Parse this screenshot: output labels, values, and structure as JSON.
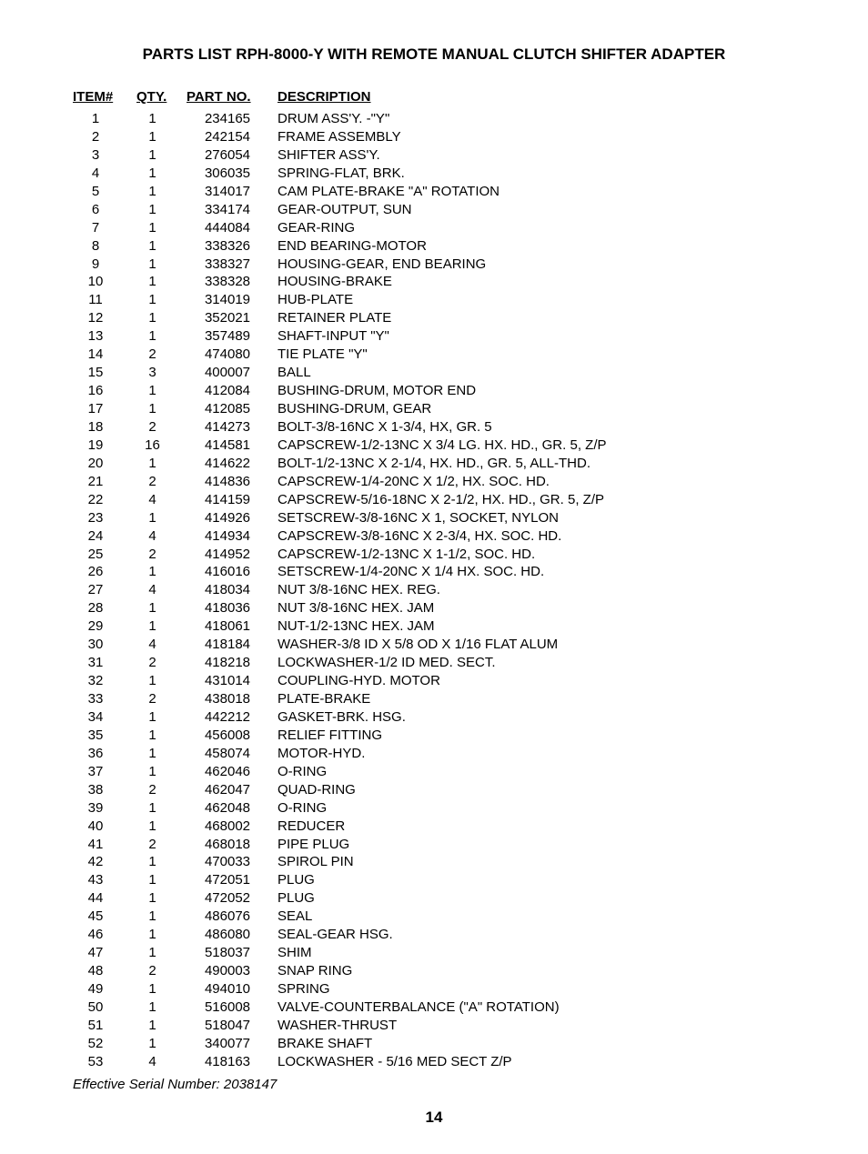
{
  "title": "PARTS LIST RPH-8000-Y WITH REMOTE MANUAL CLUTCH SHIFTER ADAPTER",
  "headers": {
    "item": "ITEM#",
    "qty": "QTY.",
    "part": "PART NO.",
    "desc": "DESCRIPTION"
  },
  "footer_note": "Effective Serial Number: 2038147",
  "page_number": "14",
  "rows": [
    {
      "item": "1",
      "qty": "1",
      "part": "234165",
      "desc": "DRUM ASS'Y. -\"Y\""
    },
    {
      "item": "2",
      "qty": "1",
      "part": "242154",
      "desc": "FRAME ASSEMBLY"
    },
    {
      "item": "3",
      "qty": "1",
      "part": "276054",
      "desc": "SHIFTER ASS'Y."
    },
    {
      "item": "4",
      "qty": "1",
      "part": "306035",
      "desc": "SPRING-FLAT, BRK."
    },
    {
      "item": "5",
      "qty": "1",
      "part": "314017",
      "desc": "CAM PLATE-BRAKE \"A\" ROTATION"
    },
    {
      "item": "6",
      "qty": "1",
      "part": "334174",
      "desc": "GEAR-OUTPUT, SUN"
    },
    {
      "item": "7",
      "qty": "1",
      "part": "444084",
      "desc": "GEAR-RING"
    },
    {
      "item": "8",
      "qty": "1",
      "part": "338326",
      "desc": "END BEARING-MOTOR"
    },
    {
      "item": "9",
      "qty": "1",
      "part": "338327",
      "desc": "HOUSING-GEAR, END BEARING"
    },
    {
      "item": "10",
      "qty": "1",
      "part": "338328",
      "desc": "HOUSING-BRAKE"
    },
    {
      "item": "11",
      "qty": "1",
      "part": "314019",
      "desc": "HUB-PLATE"
    },
    {
      "item": "12",
      "qty": "1",
      "part": "352021",
      "desc": "RETAINER PLATE"
    },
    {
      "item": "13",
      "qty": "1",
      "part": "357489",
      "desc": "SHAFT-INPUT \"Y\""
    },
    {
      "item": "14",
      "qty": "2",
      "part": "474080",
      "desc": "TIE PLATE \"Y\""
    },
    {
      "item": "15",
      "qty": "3",
      "part": "400007",
      "desc": "BALL"
    },
    {
      "item": "16",
      "qty": "1",
      "part": "412084",
      "desc": "BUSHING-DRUM, MOTOR END"
    },
    {
      "item": "17",
      "qty": "1",
      "part": "412085",
      "desc": "BUSHING-DRUM, GEAR"
    },
    {
      "item": "18",
      "qty": "2",
      "part": "414273",
      "desc": "BOLT-3/8-16NC X 1-3/4, HX, GR. 5"
    },
    {
      "item": "19",
      "qty": "16",
      "part": "414581",
      "desc": "CAPSCREW-1/2-13NC X 3/4 LG. HX. HD., GR. 5, Z/P"
    },
    {
      "item": "20",
      "qty": "1",
      "part": "414622",
      "desc": "BOLT-1/2-13NC X 2-1/4, HX. HD., GR. 5, ALL-THD."
    },
    {
      "item": "21",
      "qty": "2",
      "part": "414836",
      "desc": "CAPSCREW-1/4-20NC X 1/2, HX. SOC. HD."
    },
    {
      "item": "22",
      "qty": "4",
      "part": "414159",
      "desc": "CAPSCREW-5/16-18NC X 2-1/2, HX. HD., GR. 5, Z/P"
    },
    {
      "item": "23",
      "qty": "1",
      "part": "414926",
      "desc": "SETSCREW-3/8-16NC X 1, SOCKET, NYLON"
    },
    {
      "item": "24",
      "qty": "4",
      "part": "414934",
      "desc": "CAPSCREW-3/8-16NC X 2-3/4, HX. SOC. HD."
    },
    {
      "item": "25",
      "qty": "2",
      "part": "414952",
      "desc": "CAPSCREW-1/2-13NC X 1-1/2, SOC. HD."
    },
    {
      "item": "26",
      "qty": "1",
      "part": "416016",
      "desc": "SETSCREW-1/4-20NC X 1/4 HX. SOC. HD."
    },
    {
      "item": "27",
      "qty": "4",
      "part": "418034",
      "desc": "NUT 3/8-16NC HEX. REG."
    },
    {
      "item": "28",
      "qty": "1",
      "part": "418036",
      "desc": "NUT 3/8-16NC HEX. JAM"
    },
    {
      "item": "29",
      "qty": "1",
      "part": "418061",
      "desc": "NUT-1/2-13NC HEX. JAM"
    },
    {
      "item": "30",
      "qty": "4",
      "part": "418184",
      "desc": "WASHER-3/8 ID X 5/8 OD X 1/16 FLAT ALUM"
    },
    {
      "item": "31",
      "qty": "2",
      "part": "418218",
      "desc": "LOCKWASHER-1/2 ID MED. SECT."
    },
    {
      "item": "32",
      "qty": "1",
      "part": "431014",
      "desc": "COUPLING-HYD. MOTOR"
    },
    {
      "item": "33",
      "qty": "2",
      "part": "438018",
      "desc": "PLATE-BRAKE"
    },
    {
      "item": "34",
      "qty": "1",
      "part": "442212",
      "desc": "GASKET-BRK. HSG."
    },
    {
      "item": "35",
      "qty": "1",
      "part": "456008",
      "desc": "RELIEF FITTING"
    },
    {
      "item": "36",
      "qty": "1",
      "part": "458074",
      "desc": "MOTOR-HYD."
    },
    {
      "item": "37",
      "qty": "1",
      "part": "462046",
      "desc": "O-RING"
    },
    {
      "item": "38",
      "qty": "2",
      "part": "462047",
      "desc": "QUAD-RING"
    },
    {
      "item": "39",
      "qty": "1",
      "part": "462048",
      "desc": "O-RING"
    },
    {
      "item": "40",
      "qty": "1",
      "part": "468002",
      "desc": "REDUCER"
    },
    {
      "item": "41",
      "qty": "2",
      "part": "468018",
      "desc": "PIPE PLUG"
    },
    {
      "item": "42",
      "qty": "1",
      "part": "470033",
      "desc": "SPIROL PIN"
    },
    {
      "item": "43",
      "qty": "1",
      "part": "472051",
      "desc": "PLUG"
    },
    {
      "item": "44",
      "qty": "1",
      "part": "472052",
      "desc": "PLUG"
    },
    {
      "item": "45",
      "qty": "1",
      "part": "486076",
      "desc": "SEAL"
    },
    {
      "item": "46",
      "qty": "1",
      "part": "486080",
      "desc": "SEAL-GEAR HSG."
    },
    {
      "item": "47",
      "qty": "1",
      "part": "518037",
      "desc": "SHIM"
    },
    {
      "item": "48",
      "qty": "2",
      "part": "490003",
      "desc": "SNAP RING"
    },
    {
      "item": "49",
      "qty": "1",
      "part": "494010",
      "desc": "SPRING"
    },
    {
      "item": "50",
      "qty": "1",
      "part": "516008",
      "desc": "VALVE-COUNTERBALANCE (\"A\" ROTATION)"
    },
    {
      "item": "51",
      "qty": "1",
      "part": "518047",
      "desc": "WASHER-THRUST"
    },
    {
      "item": "52",
      "qty": "1",
      "part": "340077",
      "desc": "BRAKE SHAFT"
    },
    {
      "item": "53",
      "qty": "4",
      "part": "418163",
      "desc": "LOCKWASHER - 5/16 MED SECT Z/P"
    }
  ]
}
